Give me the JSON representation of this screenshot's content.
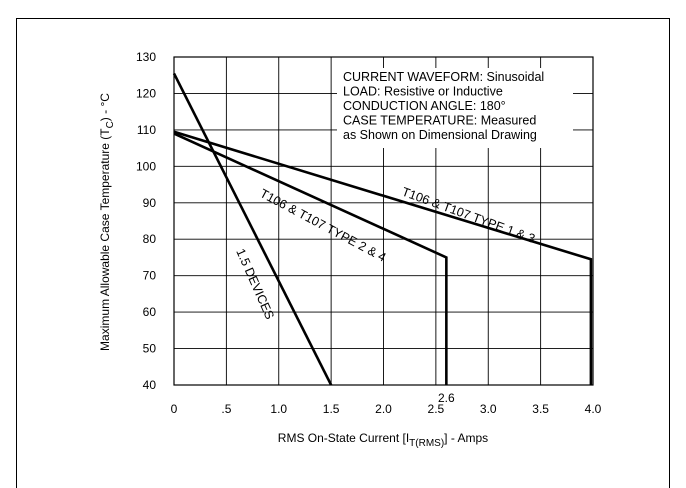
{
  "chart_data": {
    "type": "line",
    "title": "",
    "xlabel": "RMS On-State Current [I",
    "xlabel_sub": "T(RMS)",
    "xlabel_tail": "] - Amps",
    "ylabel": "Maximum Allowable Case Temperature (T",
    "ylabel_sub": "C",
    "ylabel_tail": ") - °C",
    "xlim": [
      0,
      4.0
    ],
    "ylim": [
      40,
      130
    ],
    "grid": true,
    "x_ticks": [
      0,
      0.5,
      1.0,
      1.5,
      2.0,
      2.5,
      3.0,
      3.5,
      4.0
    ],
    "x_tick_labels": [
      "0",
      ".5",
      "1.0",
      "1.5",
      "2.0",
      "2.5",
      "3.0",
      "3.5",
      "4.0"
    ],
    "y_ticks": [
      40,
      50,
      60,
      70,
      80,
      90,
      100,
      110,
      120,
      130
    ],
    "y_tick_labels": [
      "40",
      "50",
      "60",
      "70",
      "80",
      "90",
      "100",
      "110",
      "120",
      "130"
    ],
    "extra_x_label": {
      "x": 2.6,
      "text": "2.6"
    },
    "annotation_lines": [
      "CURRENT WAVEFORM: Sinusoidal",
      "LOAD: Resistive or Inductive",
      "CONDUCTION ANGLE: 180°",
      "CASE TEMPERATURE: Measured",
      "as Shown on Dimensional Drawing"
    ],
    "series": [
      {
        "name": "1.5 DEVICES",
        "x": [
          0,
          1.5
        ],
        "y": [
          125.5,
          40
        ]
      },
      {
        "name": "T106 & T107 TYPE 2 & 4",
        "x": [
          0,
          2.6,
          2.6
        ],
        "y": [
          109,
          75,
          40
        ]
      },
      {
        "name": "T106 & T107 TYPE 1 & 3",
        "x": [
          0,
          3.98,
          3.98
        ],
        "y": [
          109.5,
          74.5,
          40
        ]
      }
    ]
  }
}
